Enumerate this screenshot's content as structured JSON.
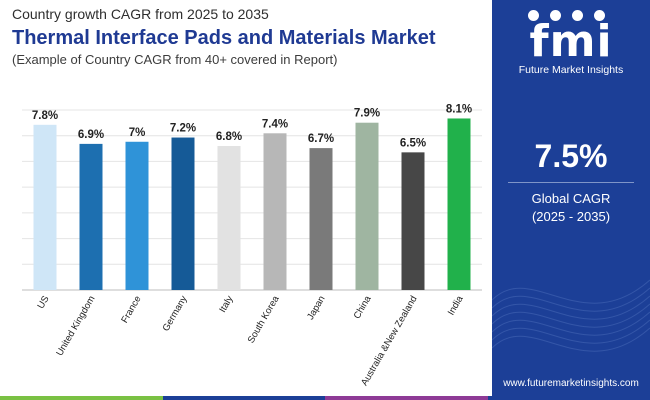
{
  "header": {
    "subtitle_top": "Country growth CAGR from 2025 to 2035",
    "title": "Thermal Interface Pads and Materials Market",
    "subtitle_bottom": "(Example of Country CAGR from 40+ covered in Report)"
  },
  "chart_data": {
    "type": "bar",
    "title": "Thermal Interface Pads and Materials Market",
    "xlabel": "",
    "ylabel": "",
    "ylim": [
      0,
      8.5
    ],
    "grid": true,
    "categories": [
      "US",
      "United Kingdom",
      "France",
      "Germany",
      "Italy",
      "South Korea",
      "Japan",
      "China",
      "Australia &New Zealand",
      "India"
    ],
    "values": [
      7.8,
      6.9,
      7.0,
      7.2,
      6.8,
      7.4,
      6.7,
      7.9,
      6.5,
      8.1
    ],
    "labels": [
      "7.8%",
      "6.9%",
      "7%",
      "7.2%",
      "6.8%",
      "7.4%",
      "6.7%",
      "7.9%",
      "6.5%",
      "8.1%"
    ],
    "colors": [
      "#cfe6f7",
      "#1d6fb0",
      "#2f93d8",
      "#155a97",
      "#e2e2e2",
      "#b7b7b7",
      "#7a7a7a",
      "#9fb5a1",
      "#474747",
      "#21b14b"
    ]
  },
  "sidebar": {
    "logo_text": "fmi",
    "logo_subtitle": "Future Market Insights",
    "cagr_value": "7.5%",
    "cagr_label": "Global CAGR",
    "cagr_period": "(2025 - 2035)",
    "website": "www.futuremarketinsights.com",
    "background": "#1c3f97"
  },
  "bottom_strip_colors": [
    "#7ac143",
    "#1c3f97",
    "#8e3a96",
    "#1c3f97"
  ]
}
